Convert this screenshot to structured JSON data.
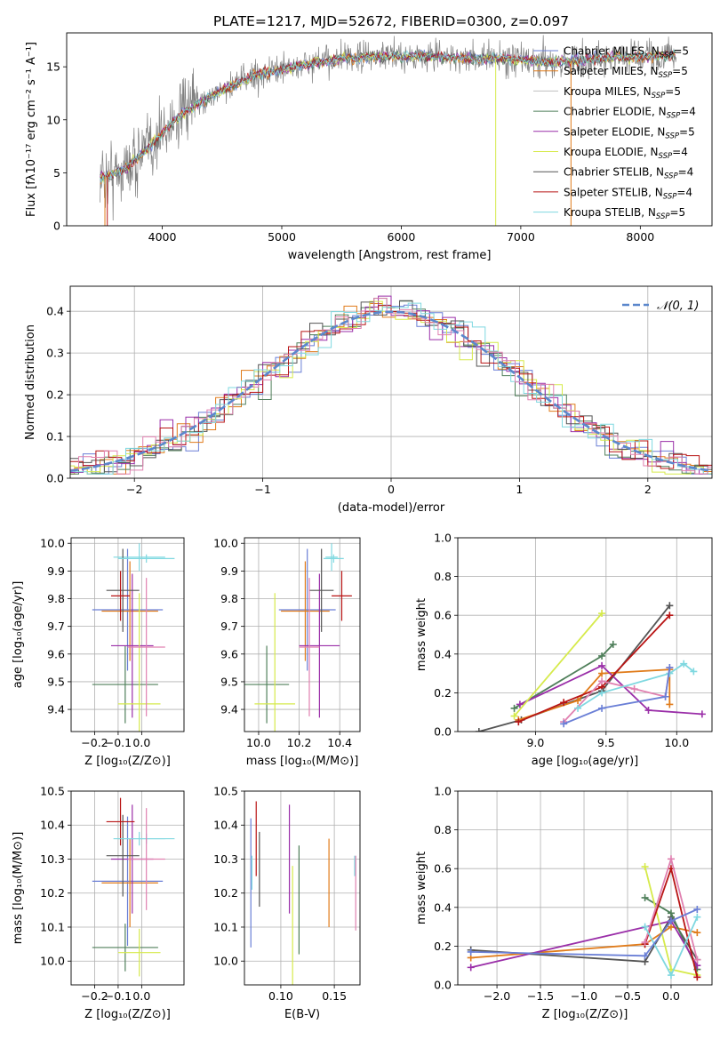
{
  "title": "PLATE=1217, MJD=52672, FIBERID=0300, z=0.097",
  "colors": [
    "#6a7fd6",
    "#e07b1a",
    "#c0c0c0",
    "#4f7f5a",
    "#9a2ea8",
    "#d6ea4b",
    "#555555",
    "#b81414",
    "#7fd8e0",
    "#e080b0",
    "#808080"
  ],
  "chart_data": [
    {
      "id": "spectrum",
      "type": "line",
      "title": "PLATE=1217, MJD=52672, FIBERID=0300, z=0.097",
      "xlabel": "wavelength [Angstrom, rest frame]",
      "ylabel": "Flux [fλ10⁻¹⁷ erg cm⁻² s⁻¹ A⁻¹]",
      "xlim": [
        3200,
        8600
      ],
      "ylim": [
        0,
        18.2
      ],
      "xticks": [
        4000,
        5000,
        6000,
        7000,
        8000
      ],
      "yticks": [
        0,
        5,
        10,
        15
      ],
      "grid": false,
      "legend_position": "top-right",
      "series": [
        {
          "name": "Chabrier MILES, N_SSP=5"
        },
        {
          "name": "Salpeter MILES, N_SSP=5"
        },
        {
          "name": "Kroupa MILES, N_SSP=5"
        },
        {
          "name": "Chabrier ELODIE, N_SSP=4"
        },
        {
          "name": "Salpeter ELODIE, N_SSP=5"
        },
        {
          "name": "Kroupa ELODIE, N_SSP=4"
        },
        {
          "name": "Chabrier STELIB, N_SSP=4"
        },
        {
          "name": "Salpeter STELIB, N_SSP=4"
        },
        {
          "name": "Kroupa STELIB, N_SSP=5"
        }
      ],
      "continuum": {
        "x": [
          3500,
          3700,
          3900,
          4100,
          4300,
          4500,
          4800,
          5100,
          5400,
          5700,
          6000,
          6300,
          6600,
          6900,
          7200,
          7500,
          7800,
          8100,
          8300
        ],
        "y": [
          4.5,
          5.5,
          7.5,
          10.0,
          11.5,
          12.8,
          14.3,
          15.0,
          15.6,
          15.9,
          16.0,
          16.0,
          15.8,
          15.8,
          15.4,
          15.6,
          15.9,
          16.0,
          16.1
        ]
      }
    },
    {
      "id": "residuals",
      "type": "line",
      "xlabel": "(data-model)/error",
      "ylabel": "Normed distribution",
      "xlim": [
        -2.5,
        2.5
      ],
      "ylim": [
        0,
        0.46
      ],
      "xticks": [
        -2,
        -1,
        0,
        1,
        2
      ],
      "yticks": [
        0.0,
        0.1,
        0.2,
        0.3,
        0.4
      ],
      "grid": true,
      "legend": "𝒩(0, 1)",
      "legend_position": "top-right"
    },
    {
      "id": "age_vs_Z",
      "type": "scatter",
      "xlabel": "Z [log₁₀(Z/Z⊙)]",
      "ylabel": "age  [log₁₀(age/yr)]",
      "xlim": [
        -0.3,
        0.18
      ],
      "ylim": [
        9.32,
        10.02
      ],
      "xticks": [
        -0.2,
        -0.1,
        0.0
      ],
      "yticks": [
        9.4,
        9.5,
        9.6,
        9.7,
        9.8,
        9.9,
        10.0
      ],
      "grid": true,
      "points": [
        {
          "x": -0.06,
          "y": 9.76,
          "xerr": 0.15,
          "yerr": 0.22
        },
        {
          "x": -0.05,
          "y": 9.755,
          "xerr": 0.12,
          "yerr": 0.18
        },
        {
          "x": -0.01,
          "y": 9.95,
          "xerr": 0.11,
          "yerr": 0.05
        },
        {
          "x": -0.07,
          "y": 9.49,
          "xerr": 0.14,
          "yerr": 0.14
        },
        {
          "x": -0.04,
          "y": 9.63,
          "xerr": 0.09,
          "yerr": 0.26
        },
        {
          "x": -0.01,
          "y": 9.42,
          "xerr": 0.09,
          "yerr": 0.4
        },
        {
          "x": -0.08,
          "y": 9.83,
          "xerr": 0.07,
          "yerr": 0.15
        },
        {
          "x": -0.09,
          "y": 9.81,
          "xerr": 0.04,
          "yerr": 0.09
        },
        {
          "x": 0.02,
          "y": 9.945,
          "xerr": 0.12,
          "yerr": 0.015
        },
        {
          "x": 0.02,
          "y": 9.625,
          "xerr": 0.08,
          "yerr": 0.25
        }
      ]
    },
    {
      "id": "age_vs_mass",
      "type": "scatter",
      "xlabel": "mass [log₁₀(M/M⊙)]",
      "xlim": [
        9.93,
        10.5
      ],
      "ylim": [
        9.32,
        10.02
      ],
      "xticks": [
        10.0,
        10.2,
        10.4
      ],
      "yticks": [
        9.4,
        9.5,
        9.6,
        9.7,
        9.8,
        9.9,
        10.0
      ],
      "grid": true,
      "points": [
        {
          "x": 10.24,
          "y": 9.76,
          "xerr": 0.14,
          "yerr": 0.22
        },
        {
          "x": 10.23,
          "y": 9.755,
          "xerr": 0.12,
          "yerr": 0.18
        },
        {
          "x": 10.36,
          "y": 9.95,
          "xerr": 0.03,
          "yerr": 0.05
        },
        {
          "x": 10.04,
          "y": 9.49,
          "xerr": 0.11,
          "yerr": 0.14
        },
        {
          "x": 10.3,
          "y": 9.63,
          "xerr": 0.1,
          "yerr": 0.26
        },
        {
          "x": 10.08,
          "y": 9.42,
          "xerr": 0.1,
          "yerr": 0.4
        },
        {
          "x": 10.31,
          "y": 9.83,
          "xerr": 0.06,
          "yerr": 0.15
        },
        {
          "x": 10.41,
          "y": 9.81,
          "xerr": 0.05,
          "yerr": 0.09
        },
        {
          "x": 10.37,
          "y": 9.945,
          "xerr": 0.05,
          "yerr": 0.015
        },
        {
          "x": 10.25,
          "y": 9.625,
          "xerr": 0.05,
          "yerr": 0.25
        }
      ]
    },
    {
      "id": "weight_vs_age",
      "type": "line",
      "xlabel": "age  [log₁₀(age/yr)]",
      "ylabel": "mass weight",
      "xlim": [
        8.45,
        10.25
      ],
      "ylim": [
        0,
        1.0
      ],
      "xticks": [
        9.0,
        9.5,
        10.0
      ],
      "yticks": [
        0.0,
        0.2,
        0.4,
        0.6,
        0.8,
        1.0
      ],
      "grid": true,
      "series": [
        {
          "x": [
            8.6,
            8.9,
            9.47,
            9.95
          ],
          "y": [
            0.0,
            0.06,
            0.21,
            0.65
          ]
        },
        {
          "x": [
            8.88,
            9.3,
            9.47,
            9.95,
            9.95
          ],
          "y": [
            0.06,
            0.16,
            0.3,
            0.32,
            0.14
          ]
        },
        {
          "x": [
            8.85,
            9.47,
            9.55
          ],
          "y": [
            0.12,
            0.39,
            0.45
          ]
        },
        {
          "x": [
            8.89,
            9.47,
            9.8,
            10.18
          ],
          "y": [
            0.14,
            0.34,
            0.11,
            0.09
          ]
        },
        {
          "x": [
            8.85,
            9.47
          ],
          "y": [
            0.08,
            0.61
          ]
        },
        {
          "x": [
            8.88,
            9.2,
            9.47,
            9.95
          ],
          "y": [
            0.05,
            0.15,
            0.23,
            0.6
          ]
        },
        {
          "x": [
            9.2,
            9.47,
            9.7,
            9.92,
            9.95
          ],
          "y": [
            0.05,
            0.26,
            0.22,
            0.18,
            0.33
          ]
        },
        {
          "x": [
            9.3,
            9.47,
            9.95,
            10.05,
            10.12
          ],
          "y": [
            0.12,
            0.2,
            0.3,
            0.35,
            0.31
          ]
        },
        {
          "x": [
            9.2,
            9.47,
            9.92,
            9.95
          ],
          "y": [
            0.04,
            0.12,
            0.18,
            0.33
          ]
        }
      ]
    },
    {
      "id": "mass_vs_Z",
      "type": "scatter",
      "xlabel": "Z [log₁₀(Z/Z⊙)]",
      "ylabel": "mass [log₁₀(M/M⊙)]",
      "xlim": [
        -0.3,
        0.18
      ],
      "ylim": [
        9.93,
        10.5
      ],
      "xticks": [
        -0.2,
        -0.1,
        0.0
      ],
      "yticks": [
        10.0,
        10.1,
        10.2,
        10.3,
        10.4,
        10.5
      ],
      "grid": true,
      "points": [
        {
          "x": -0.06,
          "y": 10.235,
          "xerr": 0.15,
          "yerr": 0.19
        },
        {
          "x": -0.05,
          "y": 10.23,
          "xerr": 0.12,
          "yerr": 0.13
        },
        {
          "x": -0.01,
          "y": 10.36,
          "xerr": 0.11,
          "yerr": 0.02
        },
        {
          "x": -0.07,
          "y": 10.04,
          "xerr": 0.14,
          "yerr": 0.07
        },
        {
          "x": -0.04,
          "y": 10.3,
          "xerr": 0.09,
          "yerr": 0.16
        },
        {
          "x": -0.01,
          "y": 10.025,
          "xerr": 0.09,
          "yerr": 0.07
        },
        {
          "x": -0.08,
          "y": 10.31,
          "xerr": 0.07,
          "yerr": 0.12
        },
        {
          "x": -0.09,
          "y": 10.41,
          "xerr": 0.06,
          "yerr": 0.07
        },
        {
          "x": 0.02,
          "y": 10.36,
          "xerr": 0.12,
          "yerr": 0.015
        },
        {
          "x": 0.02,
          "y": 10.3,
          "xerr": 0.08,
          "yerr": 0.15
        }
      ]
    },
    {
      "id": "mass_vs_ebv",
      "type": "scatter",
      "xlabel": "E(B-V)",
      "xlim": [
        0.066,
        0.174
      ],
      "ylim": [
        9.93,
        10.5
      ],
      "xticks": [
        0.1,
        0.15
      ],
      "yticks": [
        10.0,
        10.1,
        10.2,
        10.3,
        10.4,
        10.5
      ],
      "grid": true,
      "points": [
        {
          "x": 0.072,
          "y": 10.23,
          "yerr": 0.19
        },
        {
          "x": 0.145,
          "y": 10.23,
          "yerr": 0.13
        },
        {
          "x": 0.073,
          "y": 10.26,
          "yerr": 0.05
        },
        {
          "x": 0.117,
          "y": 10.18,
          "yerr": 0.16
        },
        {
          "x": 0.108,
          "y": 10.3,
          "yerr": 0.16
        },
        {
          "x": 0.111,
          "y": 10.1,
          "yerr": 0.18
        },
        {
          "x": 0.08,
          "y": 10.27,
          "yerr": 0.11
        },
        {
          "x": 0.077,
          "y": 10.36,
          "yerr": 0.11
        },
        {
          "x": 0.169,
          "y": 10.28,
          "yerr": 0.03
        },
        {
          "x": 0.17,
          "y": 10.2,
          "yerr": 0.11
        }
      ]
    },
    {
      "id": "weight_vs_Z",
      "type": "line",
      "xlabel": "Z [log₁₀(Z/Z⊙)]",
      "ylabel": "mass weight",
      "xlim": [
        -2.45,
        0.47
      ],
      "ylim": [
        0,
        1.0
      ],
      "xticks": [
        -2.0,
        -1.5,
        -1.0,
        -0.5,
        0.0
      ],
      "yticks": [
        0.0,
        0.2,
        0.4,
        0.6,
        0.8,
        1.0
      ],
      "grid": true,
      "series": [
        {
          "x": [
            -2.3,
            -0.3,
            0.0,
            0.3
          ],
          "y": [
            0.18,
            0.12,
            0.35,
            0.13
          ]
        },
        {
          "x": [
            -2.3,
            -0.3,
            0.0,
            0.3
          ],
          "y": [
            0.14,
            0.21,
            0.3,
            0.27
          ]
        },
        {
          "x": [
            -0.3,
            0.0,
            0.3
          ],
          "y": [
            0.45,
            0.37,
            0.08
          ]
        },
        {
          "x": [
            -2.3,
            0.0,
            0.3
          ],
          "y": [
            0.09,
            0.33,
            0.1
          ]
        },
        {
          "x": [
            -0.3,
            0.0,
            0.3
          ],
          "y": [
            0.61,
            0.08,
            0.05
          ]
        },
        {
          "x": [
            -0.3,
            0.0,
            0.3
          ],
          "y": [
            0.21,
            0.6,
            0.04
          ]
        },
        {
          "x": [
            -0.3,
            0.0,
            0.3
          ],
          "y": [
            0.22,
            0.65,
            0.13
          ]
        },
        {
          "x": [
            -0.3,
            0.0,
            0.3
          ],
          "y": [
            0.3,
            0.05,
            0.35
          ]
        },
        {
          "x": [
            -2.3,
            -0.3,
            0.0,
            0.3
          ],
          "y": [
            0.17,
            0.15,
            0.33,
            0.39
          ]
        }
      ]
    }
  ]
}
